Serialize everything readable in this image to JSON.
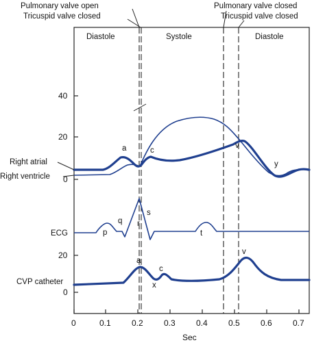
{
  "colors": {
    "trace": "#1f3f8f",
    "axis": "#222222",
    "text": "#111111"
  },
  "header": {
    "pulmonary_open": "Pulmonary valve open",
    "tricuspid_closed_left": "Tricuspid valve closed",
    "pulmonary_closed": "Pulmonary valve closed",
    "tricuspid_closed_right": "Tricuspid valve closed"
  },
  "phases": {
    "diastole_left": "Diastole",
    "systole": "Systole",
    "diastole_right": "Diastole"
  },
  "pressure_axis": {
    "ticks": [
      "40",
      "20",
      "0"
    ]
  },
  "traces": {
    "right_atrial": "Right atrial",
    "right_ventricle": "Right ventricle",
    "ecg": "ECG",
    "cvp": "CVP catheter"
  },
  "wave_labels": {
    "atrial_a": "a",
    "atrial_c": "c",
    "atrial_v": "v",
    "atrial_y": "y",
    "ecg_p": "p",
    "ecg_q": "q",
    "ecg_r": "r",
    "ecg_s": "s",
    "ecg_t": "t",
    "cvp_a": "a",
    "cvp_c": "c",
    "cvp_x": "x",
    "cvp_v": "v"
  },
  "cvp_axis": {
    "ticks": [
      "20",
      "0"
    ]
  },
  "time_axis": {
    "ticks": [
      "0",
      "0.1",
      "0.2",
      "0.3",
      "0.4",
      "0.5",
      "0.6",
      "0.7"
    ],
    "label": "Sec"
  }
}
